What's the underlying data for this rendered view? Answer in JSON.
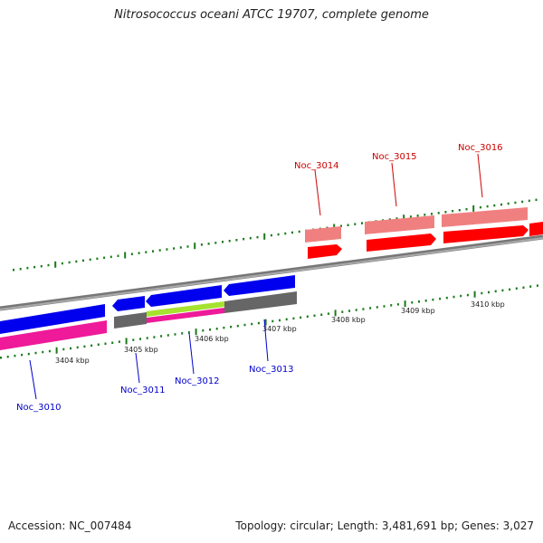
{
  "header": {
    "title": "Nitrosococcus oceani ATCC 19707, complete genome"
  },
  "footer": {
    "accession": "Accession: NC_007484",
    "summary": "Topology: circular; Length: 3,481,691 bp; Genes: 3,027"
  },
  "scale": {
    "ticks": [
      "3404 kbp",
      "3405 kbp",
      "3406 kbp",
      "3407 kbp",
      "3408 kbp",
      "3409 kbp",
      "3410 kbp"
    ]
  },
  "genes": [
    {
      "id": "Noc_3010",
      "strand": "reverse",
      "color": "#0000cc"
    },
    {
      "id": "Noc_3011",
      "strand": "reverse",
      "color": "#0000cc"
    },
    {
      "id": "Noc_3012",
      "strand": "reverse",
      "color": "#0000cc"
    },
    {
      "id": "Noc_3013",
      "strand": "reverse",
      "color": "#0000cc"
    },
    {
      "id": "Noc_3014",
      "strand": "forward",
      "color": "#cc0000"
    },
    {
      "id": "Noc_3015",
      "strand": "forward",
      "color": "#cc0000"
    },
    {
      "id": "Noc_3016",
      "strand": "forward",
      "color": "#cc0000"
    }
  ],
  "colors": {
    "forward_cds": "#ff0000",
    "forward_feature": "#f08080",
    "reverse_cds": "#0000ee",
    "reverse_feature_grey": "#666666",
    "reverse_feature_pink": "#ee1a99",
    "reverse_feature_green": "#a6e22e",
    "backbone": "#888888",
    "tick_marks": "#1a7a1a",
    "forward_label": "#cc0000",
    "reverse_label": "#0000cc"
  }
}
